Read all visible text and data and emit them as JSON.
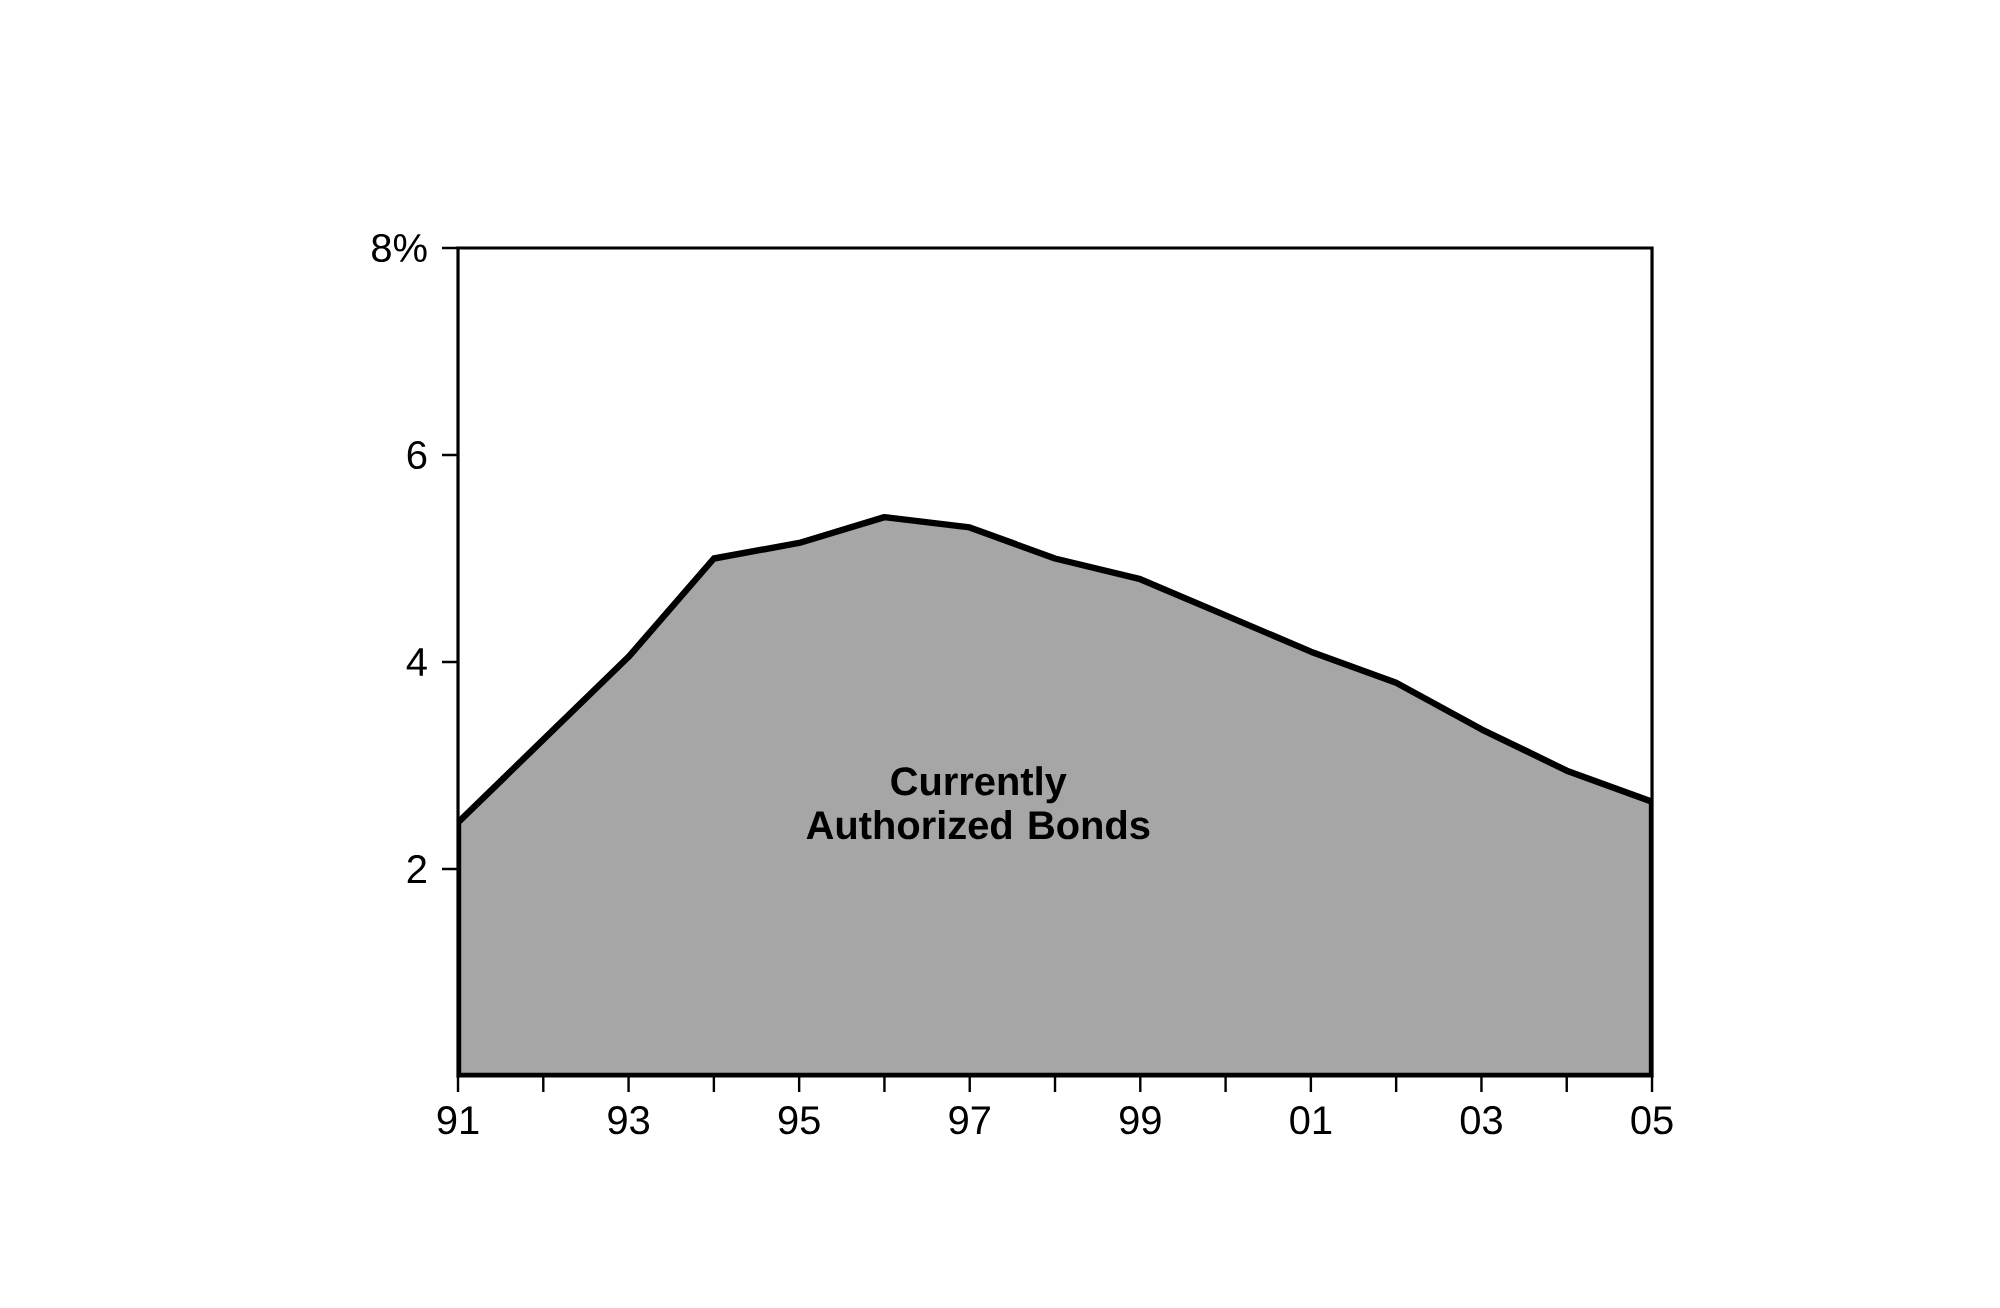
{
  "chart_data": {
    "type": "area",
    "x": [
      1991,
      1992,
      1993,
      1994,
      1995,
      1996,
      1997,
      1998,
      1999,
      2000,
      2001,
      2002,
      2003,
      2004,
      2005
    ],
    "values": [
      2.45,
      3.25,
      4.05,
      5.0,
      5.15,
      5.4,
      5.3,
      5.0,
      4.8,
      4.45,
      4.1,
      3.8,
      3.35,
      2.95,
      2.65
    ],
    "color": "#a6a6a6",
    "xlim": [
      1991,
      2005
    ],
    "xticks": [
      {
        "value": 1991,
        "label": "91"
      },
      {
        "value": 1992,
        "label": null
      },
      {
        "value": 1993,
        "label": "93"
      },
      {
        "value": 1994,
        "label": null
      },
      {
        "value": 1995,
        "label": "95"
      },
      {
        "value": 1996,
        "label": null
      },
      {
        "value": 1997,
        "label": "97"
      },
      {
        "value": 1998,
        "label": null
      },
      {
        "value": 1999,
        "label": "99"
      },
      {
        "value": 2000,
        "label": null
      },
      {
        "value": 2001,
        "label": "01"
      },
      {
        "value": 2002,
        "label": null
      },
      {
        "value": 2003,
        "label": "03"
      },
      {
        "value": 2004,
        "label": null
      },
      {
        "value": 2005,
        "label": "05"
      }
    ],
    "ylim": [
      0,
      8
    ],
    "yticks": [
      2,
      4,
      6,
      {
        "value": 8,
        "label": "8%"
      }
    ],
    "annotations": [
      "Currently Authorized Bonds"
    ]
  }
}
